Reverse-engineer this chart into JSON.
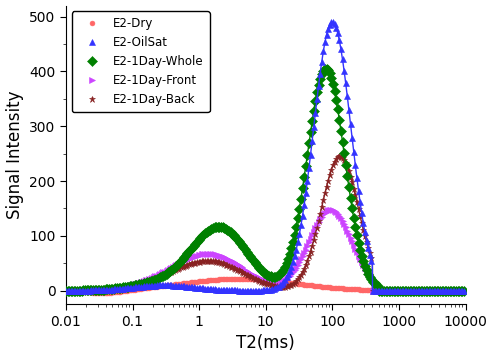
{
  "title": "",
  "xlabel": "T2(ms)",
  "ylabel": "Signal Intensity",
  "xlim": [
    0.01,
    10000
  ],
  "ylim": [
    -25,
    520
  ],
  "series": {
    "E2-Dry": {
      "color": "#FF6666",
      "marker": "o",
      "markersize": 3.5,
      "linewidth": 1.0,
      "zorder": 2
    },
    "E2-OilSat": {
      "color": "#3333FF",
      "marker": "^",
      "markersize": 5,
      "linewidth": 1.0,
      "zorder": 5
    },
    "E2-1Day-Whole": {
      "color": "#008000",
      "marker": "D",
      "markersize": 5,
      "linewidth": 1.0,
      "zorder": 4
    },
    "E2-1Day-Front": {
      "color": "#CC44FF",
      "marker": ">",
      "markersize": 5,
      "linewidth": 1.0,
      "zorder": 3
    },
    "E2-1Day-Back": {
      "color": "#882222",
      "marker": "*",
      "markersize": 5,
      "linewidth": 1.0,
      "zorder": 3
    }
  },
  "yticks": [
    0,
    100,
    200,
    300,
    400,
    500
  ],
  "xticks": [
    0.01,
    0.1,
    1,
    10,
    100,
    1000,
    10000
  ],
  "xtick_labels": [
    "0.01",
    "0.1",
    "1",
    "10",
    "100",
    "1000",
    "10000"
  ],
  "legend_loc": "upper left",
  "background_color": "#ffffff",
  "tick_fontsize": 10,
  "label_fontsize": 12
}
